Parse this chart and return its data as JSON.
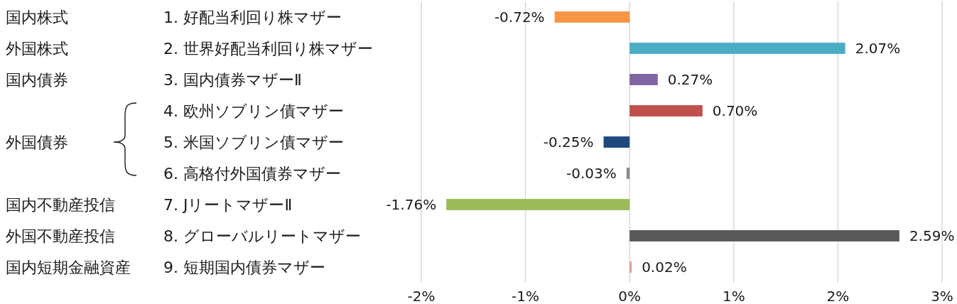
{
  "chart_data": {
    "type": "bar",
    "orientation": "horizontal",
    "categories": [
      "1. 好配当利回り株マザー",
      "2. 世界好配当利回り株マザー",
      "3. 国内債券マザーⅡ",
      "4. 欧州ソブリン債マザー",
      "5. 米国ソブリン債マザー",
      "6. 高格付外国債券マザー",
      "7. JリートマザーⅡ",
      "8. グローバルリートマザー",
      "9. 短期国内債券マザー"
    ],
    "y2_categories": [
      "国内株式",
      "外国株式",
      "国内債券",
      null,
      "外国債券",
      null,
      "国内不動産投信",
      "外国不動産投信",
      "国内短期金融資産"
    ],
    "values": [
      -0.72,
      2.07,
      0.27,
      0.7,
      -0.25,
      -0.03,
      -1.76,
      2.59,
      0.02
    ],
    "colors": [
      "#f79646",
      "#4bacc6",
      "#8064a2",
      "#c0504d",
      "#1f497d",
      "#8c8c8c",
      "#9bbb59",
      "#595959",
      "#e59c98"
    ],
    "value_labels": [
      "-0.72%",
      "2.07%",
      "0.27%",
      "0.70%",
      "-0.25%",
      "-0.03%",
      "-1.76%",
      "2.59%",
      "0.02%"
    ],
    "xlim": [
      -2,
      3
    ],
    "xticks": [
      {
        "value": -2,
        "label": "-2%"
      },
      {
        "value": -1,
        "label": "-1%"
      },
      {
        "value": 0,
        "label": "0%"
      },
      {
        "value": 1,
        "label": "1%"
      },
      {
        "value": 2,
        "label": "2%"
      },
      {
        "value": 3,
        "label": "3%"
      }
    ],
    "grid": "x"
  }
}
